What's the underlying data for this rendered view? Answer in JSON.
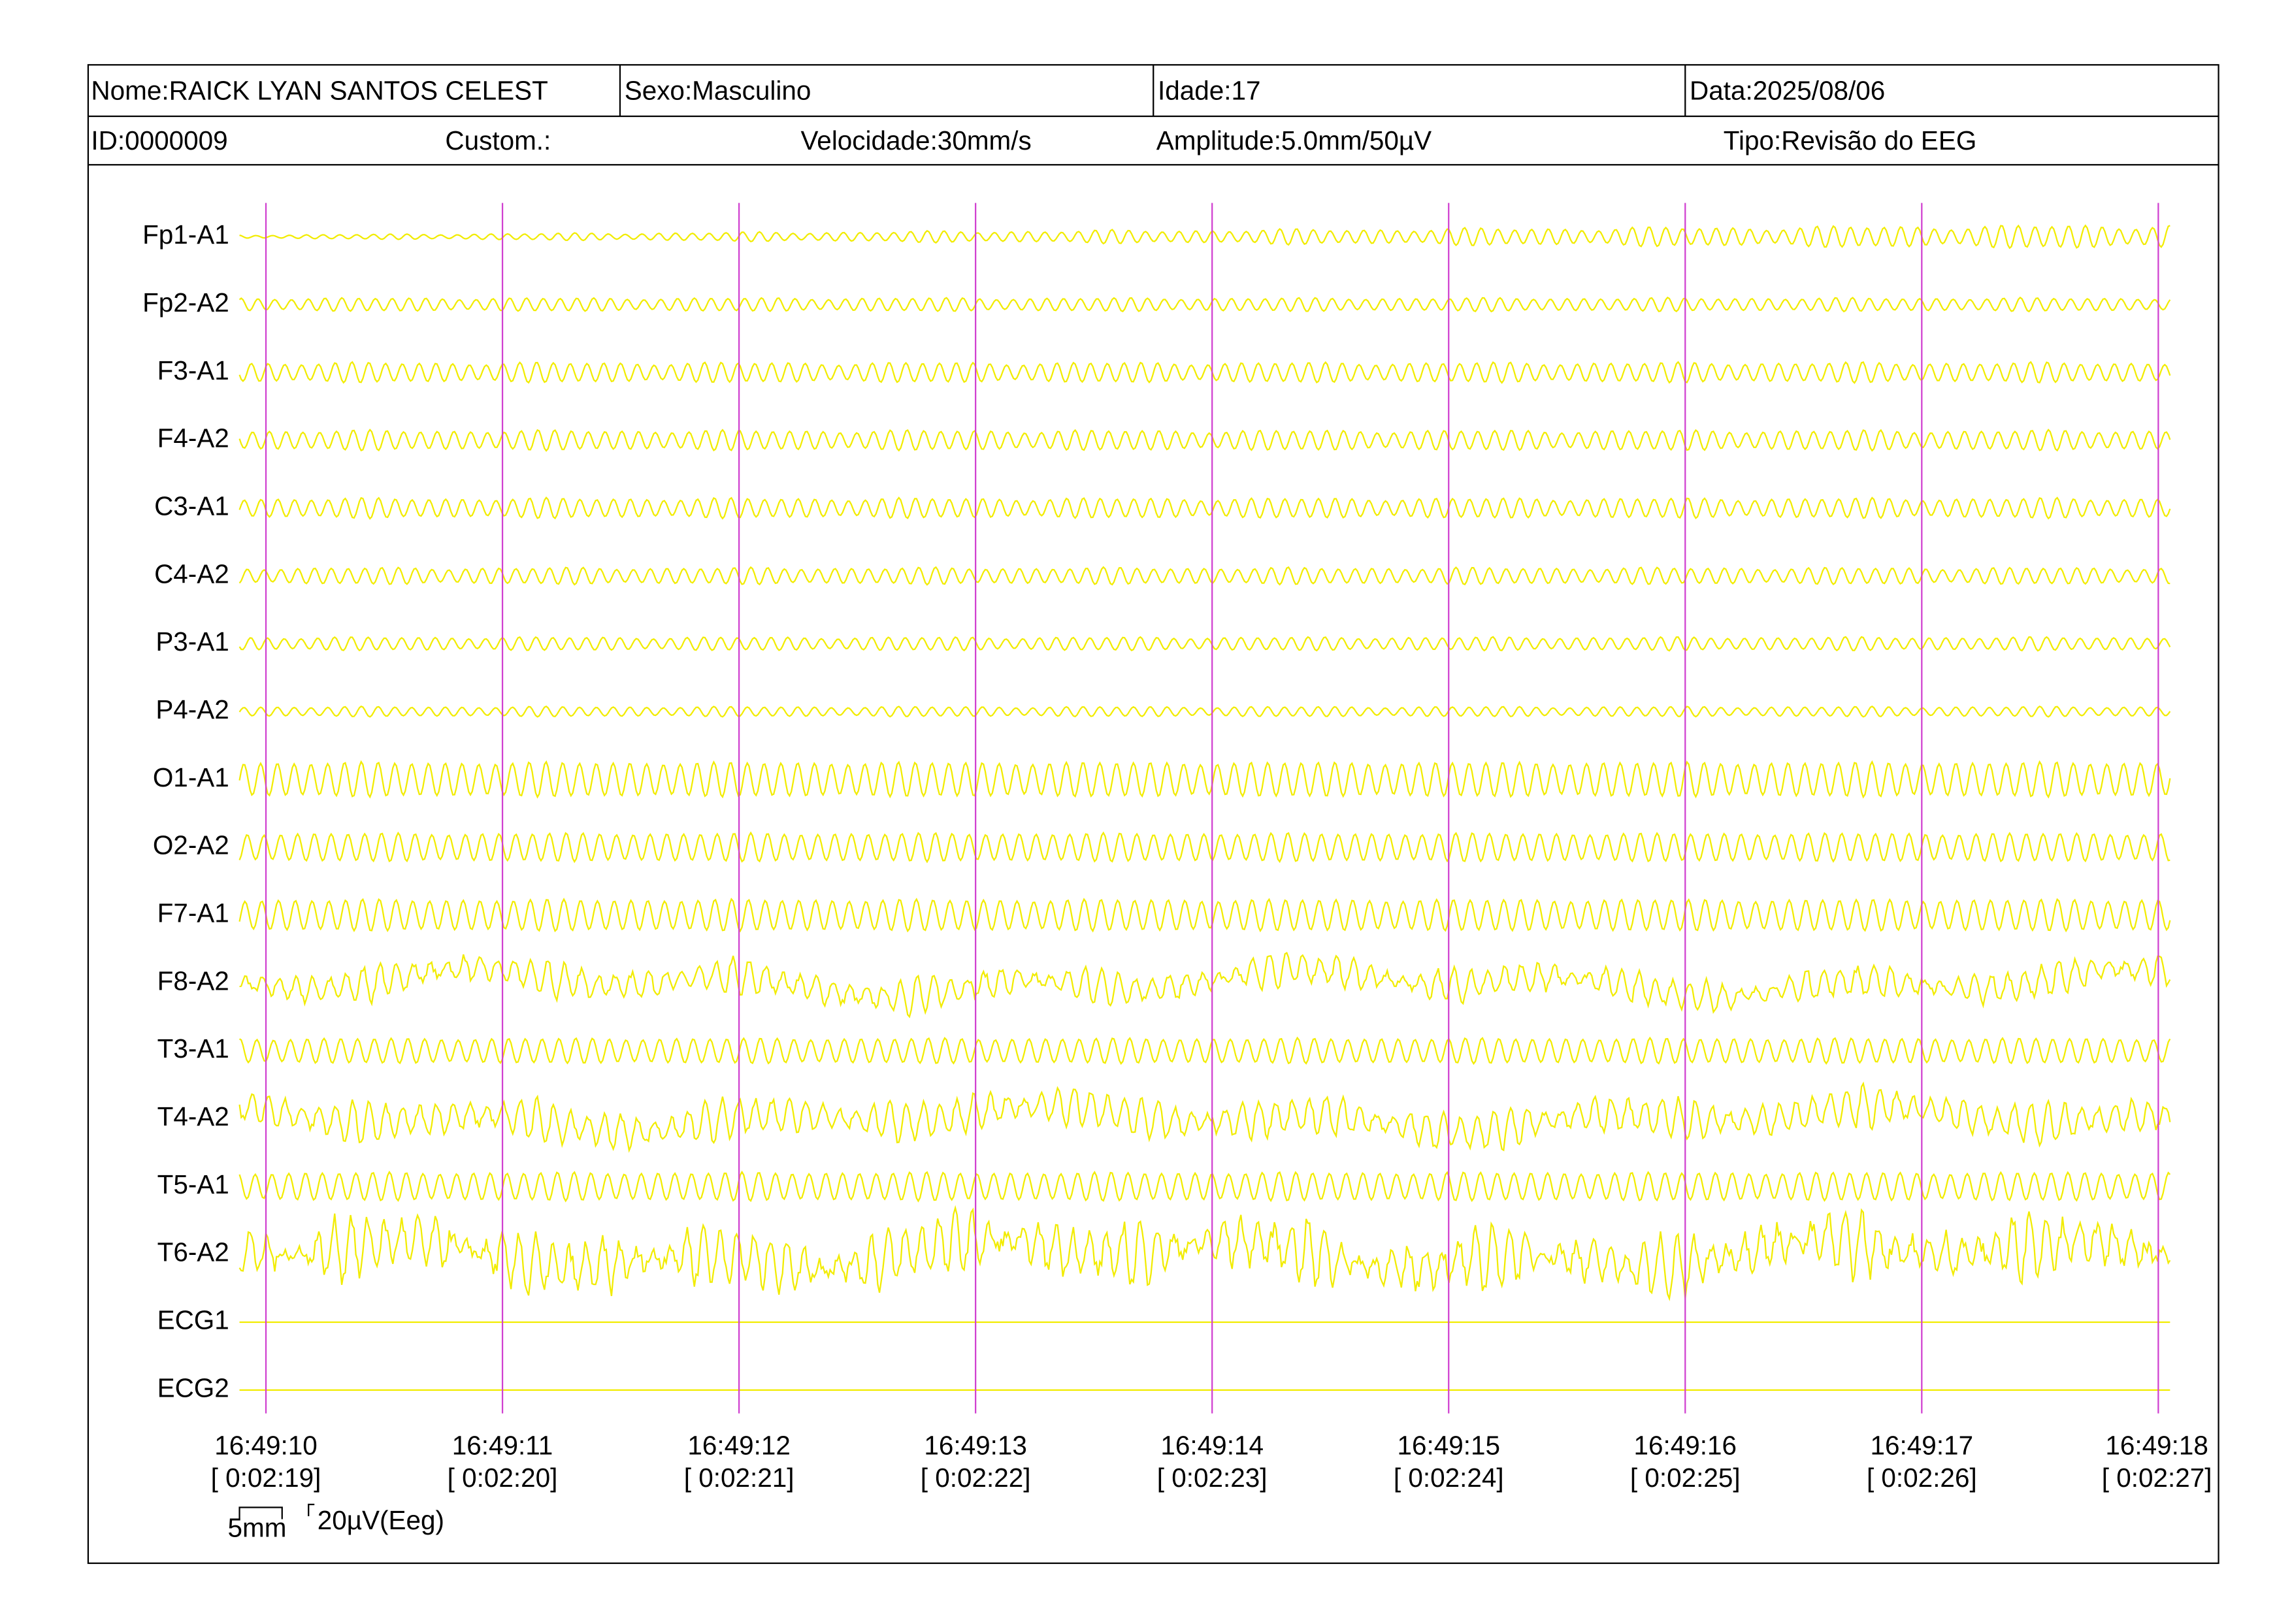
{
  "header": {
    "row1": [
      "Nome:RAICK LYAN SANTOS CELEST",
      "Sexo:Masculino",
      "Idade:17",
      "Data:2025/08/06"
    ],
    "row2": [
      "ID:0000009",
      "Custom.:",
      "Velocidade:30mm/s",
      "Amplitude:5.0mm/50µV",
      "Tipo:Revisão do EEG"
    ]
  },
  "channels": [
    "Fp1-A1",
    "Fp2-A2",
    "F3-A1",
    "F4-A2",
    "C3-A1",
    "C4-A2",
    "P3-A1",
    "P4-A2",
    "O1-A1",
    "O2-A2",
    "F7-A1",
    "F8-A2",
    "T3-A1",
    "T4-A2",
    "T5-A1",
    "T6-A2",
    "ECG1",
    "ECG2"
  ],
  "time_marks": [
    {
      "time": "16:49:10",
      "elapsed": "[ 0:02:19]"
    },
    {
      "time": "16:49:11",
      "elapsed": "[ 0:02:20]"
    },
    {
      "time": "16:49:12",
      "elapsed": "[ 0:02:21]"
    },
    {
      "time": "16:49:13",
      "elapsed": "[ 0:02:22]"
    },
    {
      "time": "16:49:14",
      "elapsed": "[ 0:02:23]"
    },
    {
      "time": "16:49:15",
      "elapsed": "[ 0:02:24]"
    },
    {
      "time": "16:49:16",
      "elapsed": "[ 0:02:25]"
    },
    {
      "time": "16:49:17",
      "elapsed": "[ 0:02:26]"
    },
    {
      "time": "16:49:18",
      "elapsed": "[ 0:02:27]"
    }
  ],
  "scale": {
    "length": "5mm",
    "amplitude": "20µV(Eeg)"
  }
}
